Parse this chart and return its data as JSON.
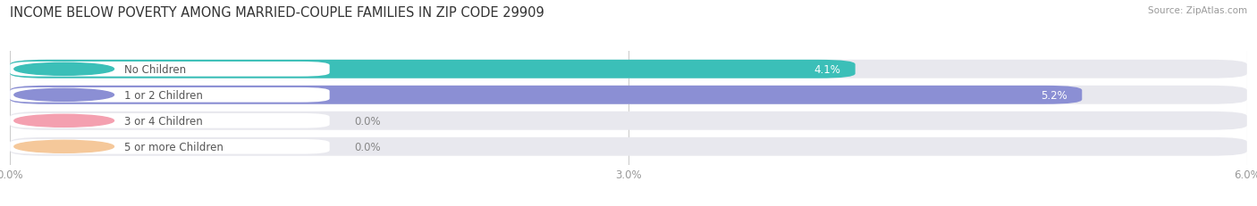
{
  "title": "INCOME BELOW POVERTY AMONG MARRIED-COUPLE FAMILIES IN ZIP CODE 29909",
  "source": "Source: ZipAtlas.com",
  "categories": [
    "No Children",
    "1 or 2 Children",
    "3 or 4 Children",
    "5 or more Children"
  ],
  "values": [
    4.1,
    5.2,
    0.0,
    0.0
  ],
  "bar_colors": [
    "#3bbfb8",
    "#8b8fd4",
    "#f4a0b0",
    "#f5c89a"
  ],
  "bg_color": "#e8e8ee",
  "xlim": [
    0,
    6.0
  ],
  "xticks": [
    0.0,
    3.0,
    6.0
  ],
  "xtick_labels": [
    "0.0%",
    "3.0%",
    "6.0%"
  ],
  "title_fontsize": 10.5,
  "label_fontsize": 8.5,
  "value_fontsize": 8.5,
  "bar_height": 0.72,
  "background_color": "#ffffff"
}
